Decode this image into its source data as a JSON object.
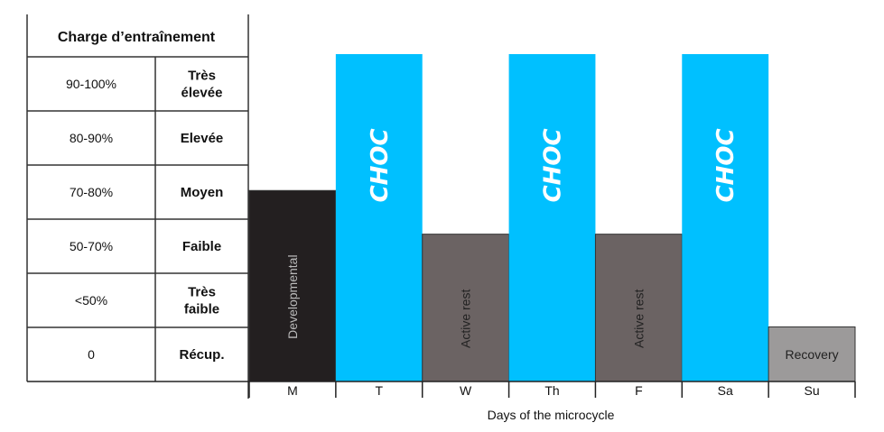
{
  "chart_data": {
    "type": "bar",
    "xlabel": "Days of the microcycle",
    "categories": [
      "M",
      "T",
      "W",
      "Th",
      "F",
      "Sa",
      "Su"
    ],
    "bars": [
      {
        "day": "M",
        "level": 3.5,
        "label": "Developmental",
        "color": "#231f20",
        "text_color": "#bbbbbb",
        "label_style": "vertical"
      },
      {
        "day": "T",
        "level": 6,
        "label": "CHOC",
        "color": "#00c0ff",
        "text_color": "#ffffff",
        "label_style": "choc"
      },
      {
        "day": "W",
        "level": 2.7,
        "label": "Active rest",
        "color": "#6b6363",
        "text_color": "#222222",
        "label_style": "vertical"
      },
      {
        "day": "Th",
        "level": 6,
        "label": "CHOC",
        "color": "#00c0ff",
        "text_color": "#ffffff",
        "label_style": "choc"
      },
      {
        "day": "F",
        "level": 2.7,
        "label": "Active rest",
        "color": "#6b6363",
        "text_color": "#222222",
        "label_style": "vertical"
      },
      {
        "day": "Sa",
        "level": 6,
        "label": "CHOC",
        "color": "#00c0ff",
        "text_color": "#ffffff",
        "label_style": "choc"
      },
      {
        "day": "Su",
        "level": 1,
        "label": "Recovery",
        "color": "#9c9a9a",
        "text_color": "#222222",
        "label_style": "horizontal"
      }
    ],
    "ylim": [
      0,
      6
    ],
    "grid": false
  },
  "load_table": {
    "header": "Charge d’entraînement",
    "rows": [
      {
        "percent": "90-100%",
        "label": "Très\nélevée"
      },
      {
        "percent": "80-90%",
        "label": "Elevée"
      },
      {
        "percent": "70-80%",
        "label": "Moyen"
      },
      {
        "percent": "50-70%",
        "label": "Faible"
      },
      {
        "percent": "<50%",
        "label": "Très\nfaible"
      },
      {
        "percent": "0",
        "label": "Récup."
      }
    ]
  }
}
